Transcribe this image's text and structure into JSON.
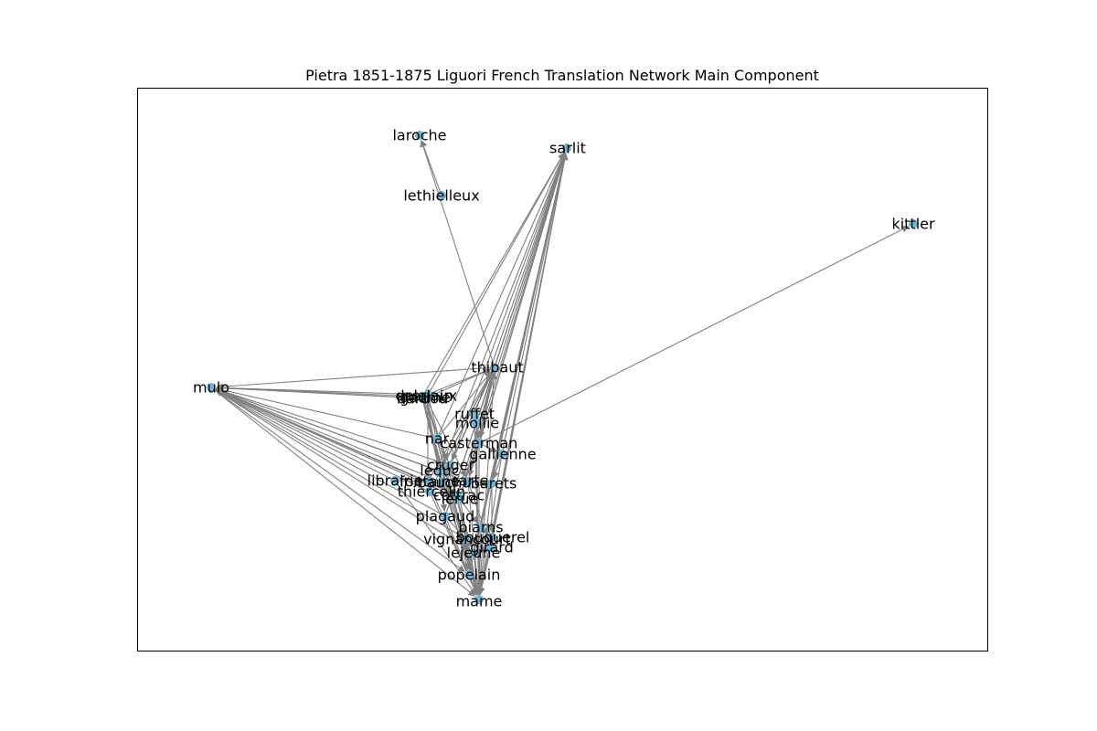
{
  "figure": {
    "title": "Pietra 1851-1875 Liguori French Translation Network Main Component"
  },
  "colors": {
    "node": "#6bb8d8",
    "edge": "#808080",
    "frame": "#000000",
    "text": "#000000"
  },
  "nodes": [
    {
      "id": "laroche",
      "label": "laroche"
    },
    {
      "id": "sarlit",
      "label": "sarlit"
    },
    {
      "id": "lethielleux",
      "label": "lethielleux"
    },
    {
      "id": "kittler",
      "label": "kittler"
    },
    {
      "id": "mulo",
      "label": "mulo"
    },
    {
      "id": "thibaut",
      "label": "thibaut"
    },
    {
      "id": "delalain",
      "label": "delalain"
    },
    {
      "id": "periaux",
      "label": "periaux"
    },
    {
      "id": "gaume",
      "label": "gaume"
    },
    {
      "id": "bardou",
      "label": "bardou"
    },
    {
      "id": "ruffet",
      "label": "ruffet"
    },
    {
      "id": "mollie",
      "label": "mollie"
    },
    {
      "id": "nar",
      "label": "nar"
    },
    {
      "id": "casterman",
      "label": "casterman"
    },
    {
      "id": "gallienne",
      "label": "gallienne"
    },
    {
      "id": "cruger",
      "label": "cruger"
    },
    {
      "id": "leduc",
      "label": "leduc"
    },
    {
      "id": "librairie",
      "label": "librairie"
    },
    {
      "id": "fontaine",
      "label": "fontaine"
    },
    {
      "id": "bauchu",
      "label": "bauchu"
    },
    {
      "id": "sarte",
      "label": "sarte"
    },
    {
      "id": "barets",
      "label": "barets"
    },
    {
      "id": "thiercelin",
      "label": "thiercelin"
    },
    {
      "id": "cottrac",
      "label": "cottrac"
    },
    {
      "id": "lerue",
      "label": "lerue"
    },
    {
      "id": "plagaud",
      "label": "plagaud"
    },
    {
      "id": "biarns",
      "label": "biarns"
    },
    {
      "id": "bouquerel",
      "label": "bouquerel"
    },
    {
      "id": "vignancourt",
      "label": "vignancourt"
    },
    {
      "id": "girard",
      "label": "girard"
    },
    {
      "id": "lejeune",
      "label": "lejeune"
    },
    {
      "id": "popelain",
      "label": "popelain"
    },
    {
      "id": "mame",
      "label": "mame"
    }
  ],
  "edges": [
    [
      "lethielleux",
      "laroche"
    ],
    [
      "thibaut",
      "laroche"
    ],
    [
      "thibaut",
      "sarlit"
    ],
    [
      "ruffet",
      "sarlit"
    ],
    [
      "mollie",
      "sarlit"
    ],
    [
      "casterman",
      "sarlit"
    ],
    [
      "gallienne",
      "sarlit"
    ],
    [
      "cruger",
      "sarlit"
    ],
    [
      "leduc",
      "sarlit"
    ],
    [
      "sarte",
      "sarlit"
    ],
    [
      "barets",
      "sarlit"
    ],
    [
      "cottrac",
      "sarlit"
    ],
    [
      "lerue",
      "sarlit"
    ],
    [
      "biarns",
      "sarlit"
    ],
    [
      "bouquerel",
      "sarlit"
    ],
    [
      "girard",
      "sarlit"
    ],
    [
      "lejeune",
      "sarlit"
    ],
    [
      "popelain",
      "sarlit"
    ],
    [
      "mame",
      "sarlit"
    ],
    [
      "delalain",
      "sarlit"
    ],
    [
      "gaume",
      "sarlit"
    ],
    [
      "plagaud",
      "sarlit"
    ],
    [
      "nar",
      "sarlit"
    ],
    [
      "casterman",
      "kittler"
    ],
    [
      "delalain",
      "mulo"
    ],
    [
      "periaux",
      "mulo"
    ],
    [
      "gaume",
      "mulo"
    ],
    [
      "bardou",
      "mulo"
    ],
    [
      "cruger",
      "mulo"
    ],
    [
      "leduc",
      "mulo"
    ],
    [
      "librairie",
      "mulo"
    ],
    [
      "fontaine",
      "mulo"
    ],
    [
      "bauchu",
      "mulo"
    ],
    [
      "thiercelin",
      "mulo"
    ],
    [
      "cottrac",
      "mulo"
    ],
    [
      "lerue",
      "mulo"
    ],
    [
      "plagaud",
      "mulo"
    ],
    [
      "vignancourt",
      "mulo"
    ],
    [
      "thibaut",
      "mulo"
    ],
    [
      "nar",
      "mulo"
    ],
    [
      "sarte",
      "mulo"
    ],
    [
      "mulo",
      "mame"
    ],
    [
      "mulo",
      "popelain"
    ],
    [
      "mulo",
      "lejeune"
    ],
    [
      "delalain",
      "thibaut"
    ],
    [
      "gaume",
      "thibaut"
    ],
    [
      "cruger",
      "thibaut"
    ],
    [
      "leduc",
      "thibaut"
    ],
    [
      "bauchu",
      "thibaut"
    ],
    [
      "fontaine",
      "thibaut"
    ],
    [
      "thiercelin",
      "thibaut"
    ],
    [
      "lerue",
      "thibaut"
    ],
    [
      "plagaud",
      "thibaut"
    ],
    [
      "mame",
      "thibaut"
    ],
    [
      "casterman",
      "thibaut"
    ],
    [
      "mollie",
      "thibaut"
    ],
    [
      "nar",
      "thibaut"
    ],
    [
      "delalain",
      "mame"
    ],
    [
      "gaume",
      "mame"
    ],
    [
      "bardou",
      "mame"
    ],
    [
      "periaux",
      "mame"
    ],
    [
      "cruger",
      "mame"
    ],
    [
      "leduc",
      "mame"
    ],
    [
      "librairie",
      "mame"
    ],
    [
      "fontaine",
      "mame"
    ],
    [
      "bauchu",
      "mame"
    ],
    [
      "sarte",
      "mame"
    ],
    [
      "barets",
      "mame"
    ],
    [
      "thiercelin",
      "mame"
    ],
    [
      "cottrac",
      "mame"
    ],
    [
      "lerue",
      "mame"
    ],
    [
      "plagaud",
      "mame"
    ],
    [
      "biarns",
      "mame"
    ],
    [
      "bouquerel",
      "mame"
    ],
    [
      "vignancourt",
      "mame"
    ],
    [
      "girard",
      "mame"
    ],
    [
      "lejeune",
      "mame"
    ],
    [
      "popelain",
      "mame"
    ],
    [
      "casterman",
      "mame"
    ],
    [
      "mollie",
      "mame"
    ],
    [
      "ruffet",
      "mame"
    ],
    [
      "gallienne",
      "mame"
    ],
    [
      "nar",
      "mame"
    ],
    [
      "delalain",
      "popelain"
    ],
    [
      "gaume",
      "lejeune"
    ],
    [
      "cruger",
      "vignancourt"
    ],
    [
      "leduc",
      "plagaud"
    ],
    [
      "bauchu",
      "lerue"
    ],
    [
      "sarte",
      "barets"
    ],
    [
      "casterman",
      "gallienne"
    ],
    [
      "mollie",
      "casterman"
    ],
    [
      "ruffet",
      "mollie"
    ],
    [
      "nar",
      "cruger"
    ],
    [
      "delalain",
      "cruger"
    ],
    [
      "gaume",
      "leduc"
    ],
    [
      "periaux",
      "fontaine"
    ],
    [
      "bardou",
      "bauchu"
    ],
    [
      "librairie",
      "fontaine"
    ],
    [
      "thiercelin",
      "cottrac"
    ],
    [
      "cottrac",
      "lerue"
    ],
    [
      "biarns",
      "bouquerel"
    ],
    [
      "girard",
      "lejeune"
    ],
    [
      "vignancourt",
      "popelain"
    ],
    [
      "plagaud",
      "vignancourt"
    ],
    [
      "lerue",
      "biarns"
    ],
    [
      "sarte",
      "girard"
    ],
    [
      "barets",
      "bouquerel"
    ],
    [
      "gallienne",
      "barets"
    ],
    [
      "thibaut",
      "casterman"
    ],
    [
      "thibaut",
      "cruger"
    ],
    [
      "thibaut",
      "sarte"
    ],
    [
      "delalain",
      "leduc"
    ],
    [
      "gaume",
      "sarte"
    ]
  ]
}
